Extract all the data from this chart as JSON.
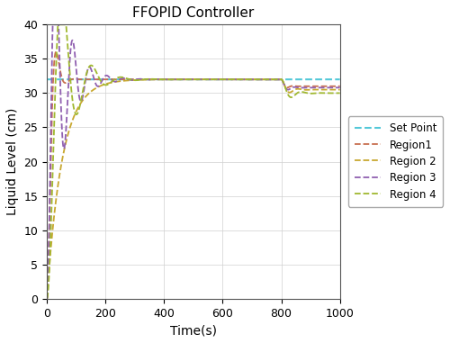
{
  "title": "FFOPID Controller",
  "xlabel": "Time(s)",
  "ylabel": "Liquid Level (cm)",
  "setpoint": 32,
  "t_end": 1000,
  "disturbance_t": 800,
  "xlim": [
    0,
    1000
  ],
  "ylim": [
    0,
    40
  ],
  "yticks": [
    0,
    5,
    10,
    15,
    20,
    25,
    30,
    35,
    40
  ],
  "xticks": [
    0,
    200,
    400,
    600,
    800,
    1000
  ],
  "sp_color": "#54C8D8",
  "region1_color": "#C87050",
  "region2_color": "#C8A830",
  "region3_color": "#9060B0",
  "region4_color": "#A0B830",
  "legend_labels": [
    "Set Point",
    "Region1",
    "Region 2",
    "Region 3",
    "Region 4"
  ],
  "title_fontsize": 11,
  "label_fontsize": 10,
  "figsize": [
    5.0,
    3.81
  ],
  "dpi": 100
}
